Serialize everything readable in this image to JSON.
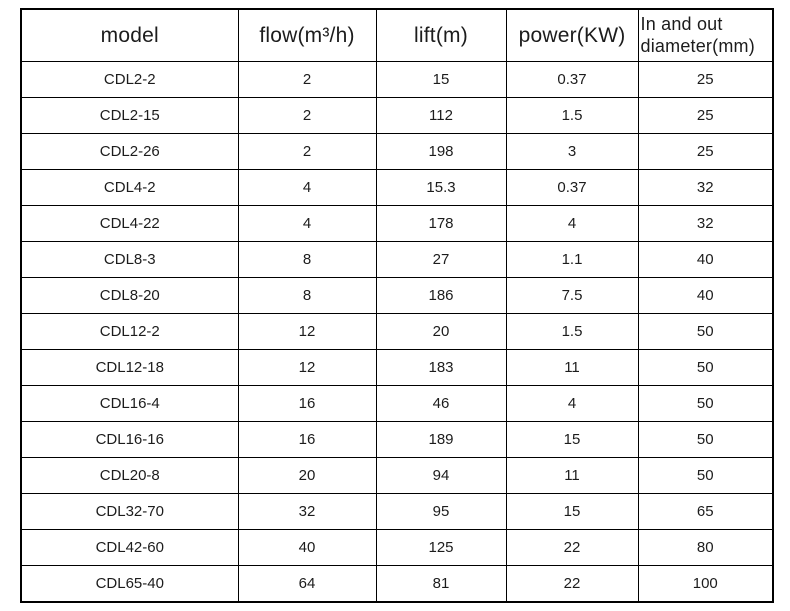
{
  "table": {
    "title": "pump-specification-table",
    "headers": [
      "model",
      "flow(m³/h)",
      "lift(m)",
      "power(KW)",
      "In and out\ndiameter(mm)"
    ],
    "column_keys": [
      "model",
      "flow",
      "lift",
      "power",
      "diameter"
    ],
    "rows": [
      [
        "CDL2-2",
        "2",
        "15",
        "0.37",
        "25"
      ],
      [
        "CDL2-15",
        "2",
        "112",
        "1.5",
        "25"
      ],
      [
        "CDL2-26",
        "2",
        "198",
        "3",
        "25"
      ],
      [
        "CDL4-2",
        "4",
        "15.3",
        "0.37",
        "32"
      ],
      [
        "CDL4-22",
        "4",
        "178",
        "4",
        "32"
      ],
      [
        "CDL8-3",
        "8",
        "27",
        "1.1",
        "40"
      ],
      [
        "CDL8-20",
        "8",
        "186",
        "7.5",
        "40"
      ],
      [
        "CDL12-2",
        "12",
        "20",
        "1.5",
        "50"
      ],
      [
        "CDL12-18",
        "12",
        "183",
        "11",
        "50"
      ],
      [
        "CDL16-4",
        "16",
        "46",
        "4",
        "50"
      ],
      [
        "CDL16-16",
        "16",
        "189",
        "15",
        "50"
      ],
      [
        "CDL20-8",
        "20",
        "94",
        "11",
        "50"
      ],
      [
        "CDL32-70",
        "32",
        "95",
        "15",
        "65"
      ],
      [
        "CDL42-60",
        "40",
        "125",
        "22",
        "80"
      ],
      [
        "CDL65-40",
        "64",
        "81",
        "22",
        "100"
      ]
    ],
    "colors": {
      "border": "#000000",
      "text": "#1c1c1c",
      "background": "#ffffff"
    }
  }
}
